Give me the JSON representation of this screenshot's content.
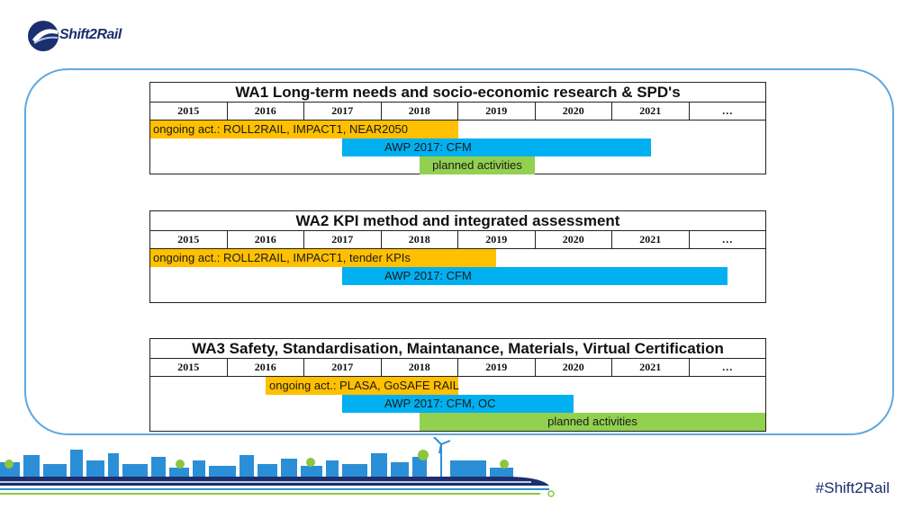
{
  "logo": {
    "text": "Shift2Rail"
  },
  "hashtag": "#Shift2Rail",
  "colors": {
    "ongoing": "#ffc000",
    "awp": "#00b0f0",
    "planned": "#92d050",
    "frame": "#5fa8e0"
  },
  "years": [
    "2015",
    "2016",
    "2017",
    "2018",
    "2019",
    "2020",
    "2021",
    "…"
  ],
  "wa1": {
    "title": "WA1 Long-term needs and socio-economic research & SPD's",
    "ongoing": "ongoing act.: ROLL2RAIL, IMPACT1, NEAR2050",
    "awp": "AWP 2017: CFM",
    "planned": "planned activities"
  },
  "wa2": {
    "title": "WA2 KPI method and integrated assessment",
    "ongoing": "ongoing act.: ROLL2RAIL, IMPACT1, tender KPIs",
    "awp": "AWP 2017: CFM"
  },
  "wa3": {
    "title": "WA3  Safety, Standardisation, Maintanance, Materials, Virtual Certification",
    "ongoing": "ongoing act.: PLASA, GoSAFE RAIL",
    "awp": "AWP 2017: CFM, OC",
    "planned": "planned activities"
  }
}
